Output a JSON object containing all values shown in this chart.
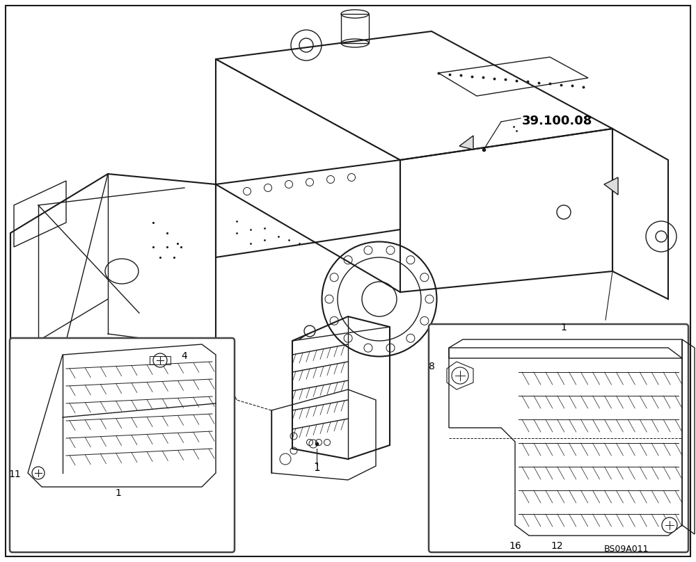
{
  "background_color": "#ffffff",
  "border_color": "#000000",
  "ref_number": "39.100.08",
  "watermark": "BS09A011",
  "line_color": "#1a1a1a",
  "figsize": [
    10.0,
    8.08
  ],
  "dpi": 100
}
